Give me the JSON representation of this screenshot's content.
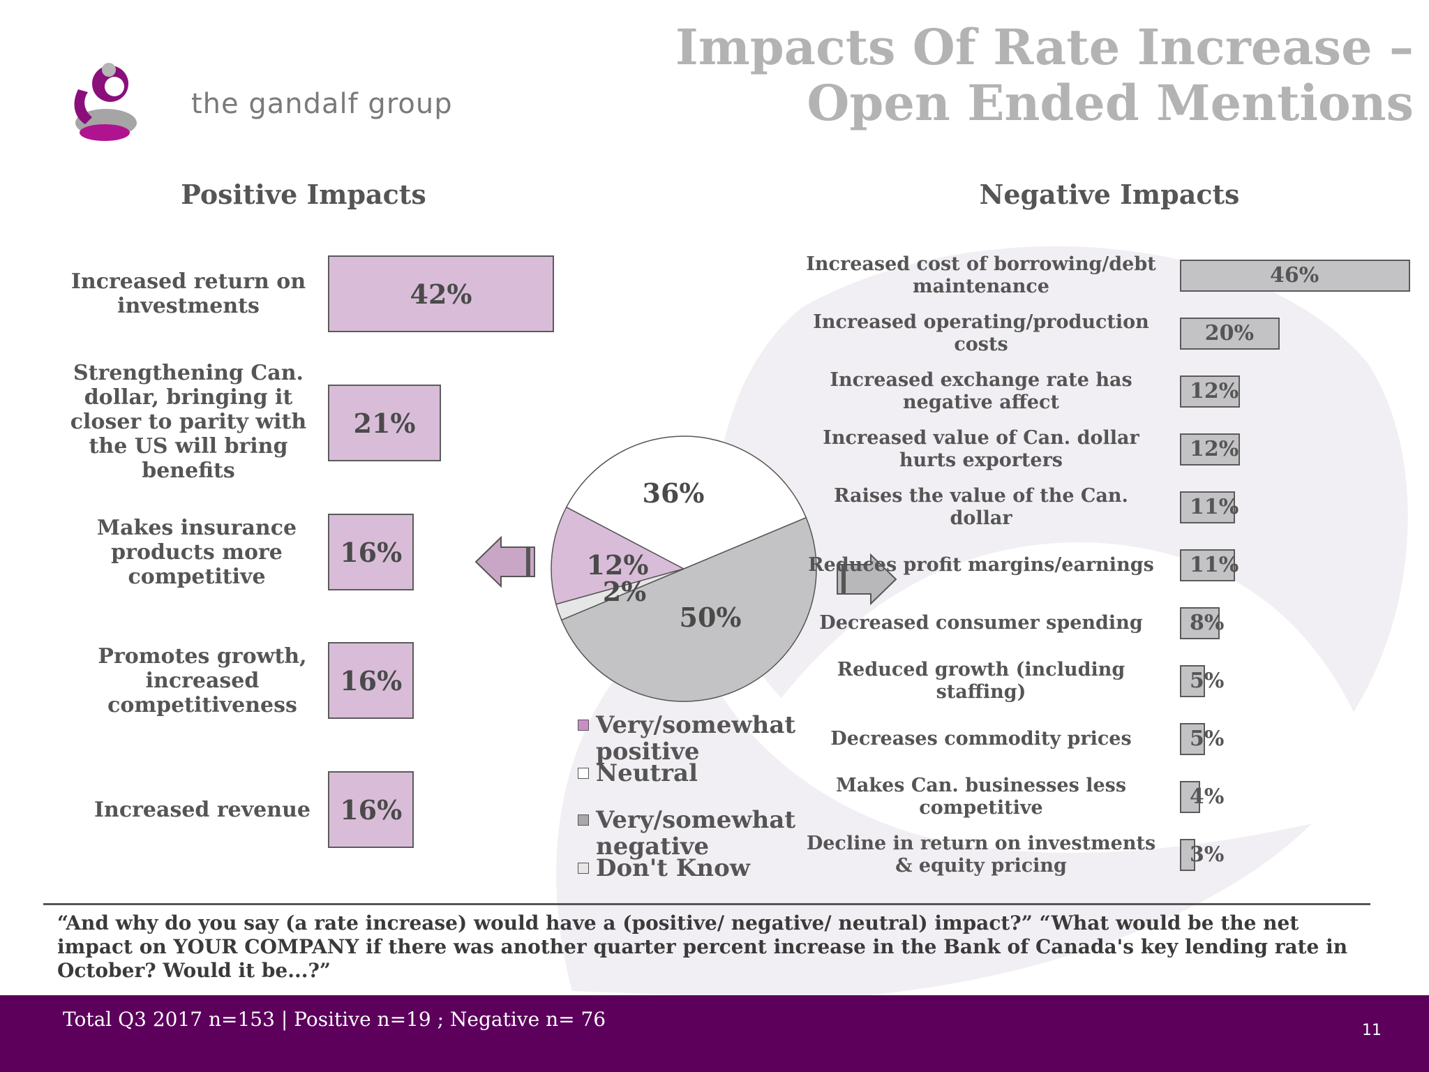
{
  "brand": {
    "logo_text": "the gandalf group"
  },
  "title": {
    "line1": "Impacts Of  Rate Increase –",
    "line2": "Open Ended Mentions"
  },
  "colors": {
    "positive": "#d9bdd8",
    "neutral": "#ffffff",
    "negative": "#c3c3c5",
    "dont_know": "#e6e6e6",
    "footer": "#5c005c",
    "title": "#b3b3b3"
  },
  "chart_data": [
    {
      "type": "bar",
      "title": "Positive Impacts",
      "categories": [
        "Increased return on investments",
        "Strengthening Can. dollar, bringing it closer to parity with the US will bring benefits",
        "Makes insurance products more competitive",
        "Promotes growth, increased competitiveness",
        "Increased revenue"
      ],
      "values": [
        42,
        21,
        16,
        16,
        16
      ],
      "value_labels": [
        "42%",
        "21%",
        "16%",
        "16%",
        "16%"
      ]
    },
    {
      "type": "pie",
      "categories": [
        "Very/somewhat positive",
        "Neutral",
        "Very/somewhat negative",
        "Don't Know"
      ],
      "values": [
        12,
        36,
        50,
        2
      ],
      "value_labels": [
        "12%",
        "36%",
        "50%",
        "2%"
      ]
    },
    {
      "type": "bar",
      "title": "Negative Impacts",
      "categories": [
        "Increased cost of borrowing/debt maintenance",
        "Increased operating/production costs",
        "Increased exchange rate has negative affect",
        "Increased value of Can. dollar hurts exporters",
        "Raises the value of the Can. dollar",
        "Reduces profit margins/earnings",
        "Decreased consumer spending",
        "Reduced growth (including staffing)",
        "Decreases commodity prices",
        "Makes Can. businesses less competitive",
        "Decline in return on investments & equity pricing"
      ],
      "values": [
        46,
        20,
        12,
        12,
        11,
        11,
        8,
        5,
        5,
        4,
        3
      ],
      "value_labels": [
        "46%",
        "20%",
        "12%",
        "12%",
        "11%",
        "11%",
        "8%",
        "5%",
        "5%",
        "4%",
        "3%"
      ]
    }
  ],
  "question": "“And why do you say (a rate increase) would have a (positive/ negative/ neutral) impact?” “What would be the net impact on YOUR COMPANY if there was another quarter percent increase in the Bank of Canada's key lending rate in October? Would it be...?”",
  "footer": {
    "base": "Total Q3 2017 n=153 | Positive n=19 ; Negative n= 76",
    "page_number": "11"
  }
}
